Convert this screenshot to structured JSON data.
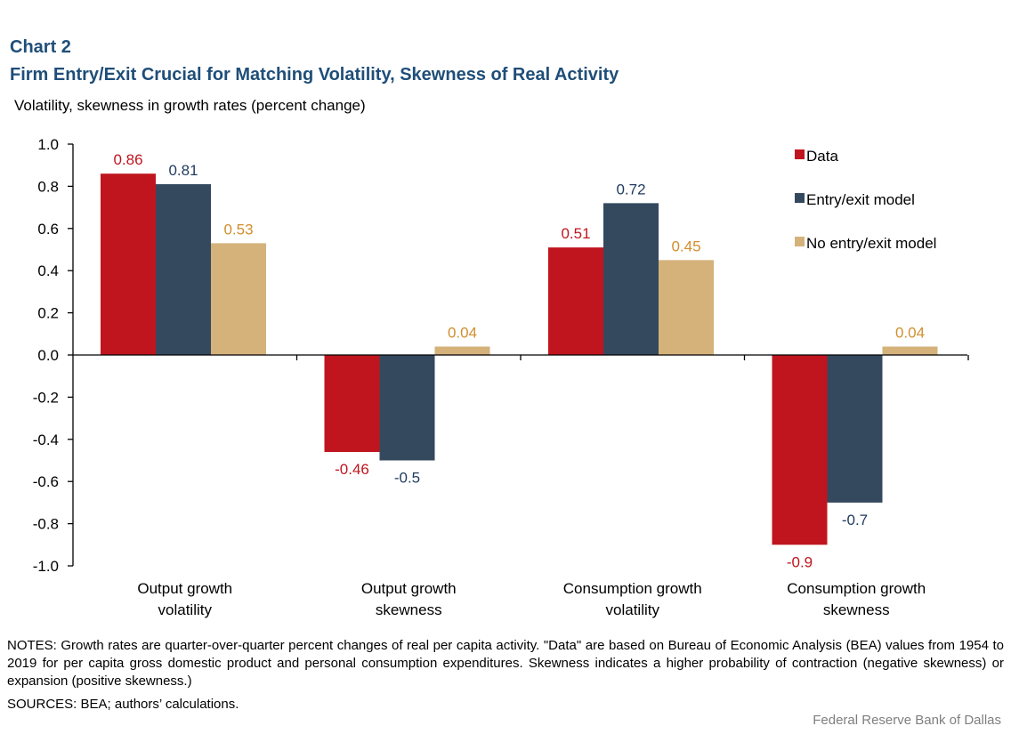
{
  "header": {
    "label": "Chart 2",
    "title": "Firm Entry/Exit Crucial for Matching Volatility, Skewness of Real Activity",
    "subtitle": "Volatility, skewness in growth rates (percent change)"
  },
  "chart_data": {
    "type": "bar",
    "categories": [
      [
        "Output growth",
        "volatility"
      ],
      [
        "Output growth",
        "skewness"
      ],
      [
        "Consumption growth",
        "volatility"
      ],
      [
        "Consumption growth",
        "skewness"
      ]
    ],
    "series": [
      {
        "name": "Data",
        "color": "#c0151f",
        "label_color": "#c0151f",
        "values": [
          0.86,
          -0.46,
          0.51,
          -0.9
        ],
        "labels": [
          "0.86",
          "-0.46",
          "0.51",
          "-0.9"
        ]
      },
      {
        "name": "Entry/exit model",
        "color": "#34495e",
        "label_color": "#1f3a5f",
        "values": [
          0.81,
          -0.5,
          0.72,
          -0.7
        ],
        "labels": [
          "0.81",
          "-0.5",
          "0.72",
          "-0.7"
        ]
      },
      {
        "name": "No entry/exit model",
        "color": "#d4b27a",
        "label_color": "#d18f2e",
        "values": [
          0.53,
          0.04,
          0.45,
          0.04
        ],
        "labels": [
          "0.53",
          "0.04",
          "0.45",
          "0.04"
        ]
      }
    ],
    "ylim": [
      -1.0,
      1.0
    ],
    "yticks": [
      "1.0",
      "0.8",
      "0.6",
      "0.4",
      "0.2",
      "0.0",
      "-0.2",
      "-0.4",
      "-0.6",
      "-0.8",
      "-1.0"
    ],
    "ytick_values": [
      1.0,
      0.8,
      0.6,
      0.4,
      0.2,
      0.0,
      -0.2,
      -0.4,
      -0.6,
      -0.8,
      -1.0
    ],
    "xlabel": "",
    "ylabel": "",
    "legend_position": "top-right"
  },
  "footer": {
    "notes": "NOTES: Growth rates are quarter-over-quarter percent changes of real per capita activity. \"Data\" are based on Bureau of Economic Analysis (BEA) values from 1954 to 2019 for per capita gross domestic product and personal consumption expenditures. Skewness indicates a higher probability of contraction (negative skewness) or expansion (positive skewness.)",
    "sources": "SOURCES: BEA; authors’ calculations.",
    "credit": "Federal Reserve Bank of Dallas"
  }
}
